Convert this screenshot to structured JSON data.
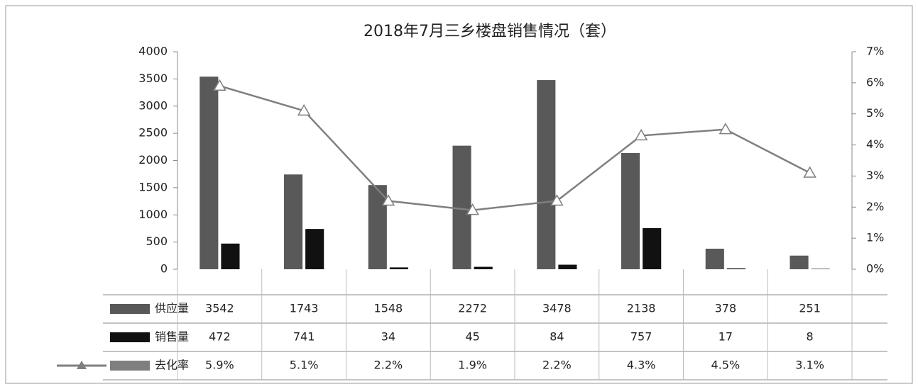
{
  "chart_data": {
    "type": "bar",
    "title": "2018年7月三乡楼盘销售情况（套）",
    "categories": [
      null,
      null,
      null,
      null,
      null,
      null,
      null,
      null
    ],
    "series": [
      {
        "name": "供应量",
        "type": "bar",
        "color": "#595959",
        "values": [
          3542,
          1743,
          1548,
          2272,
          3478,
          2138,
          378,
          251
        ]
      },
      {
        "name": "销售量",
        "type": "bar",
        "color": "#111111",
        "values": [
          472,
          741,
          34,
          45,
          84,
          757,
          17,
          8
        ]
      },
      {
        "name": "去化率",
        "type": "line",
        "axis": "y2",
        "color": "#7f7f7f",
        "values": [
          5.9,
          5.1,
          2.2,
          1.9,
          2.2,
          4.3,
          4.5,
          3.1
        ],
        "value_labels": [
          "5.9%",
          "5.1%",
          "2.2%",
          "1.9%",
          "2.2%",
          "4.3%",
          "4.5%",
          "3.1%"
        ]
      }
    ],
    "ylim": [
      0,
      4000
    ],
    "yticks": [
      0,
      500,
      1000,
      1500,
      2000,
      2500,
      3000,
      3500,
      4000
    ],
    "y2lim": [
      0,
      7
    ],
    "y2ticks": [
      {
        "value": 0,
        "label": "0%"
      },
      {
        "value": 1,
        "label": "1%"
      },
      {
        "value": 2,
        "label": "2%"
      },
      {
        "value": 3,
        "label": "3%"
      },
      {
        "value": 4,
        "label": "4%"
      },
      {
        "value": 5,
        "label": "5%"
      },
      {
        "value": 6,
        "label": "6%"
      },
      {
        "value": 7,
        "label": "7%"
      }
    ],
    "grid": false
  }
}
